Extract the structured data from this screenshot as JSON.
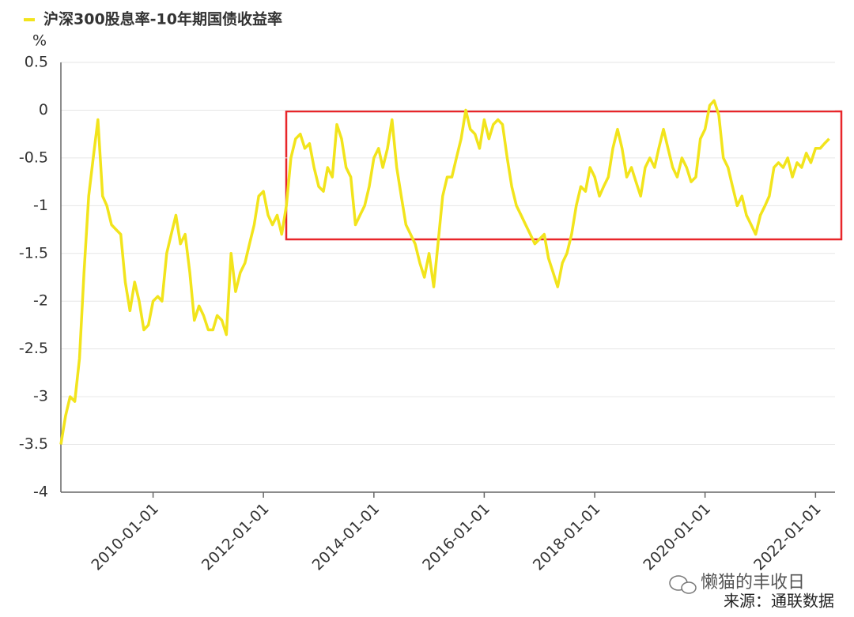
{
  "chart_data": {
    "type": "line",
    "ylabel": "%",
    "series": [
      {
        "name": "沪深300股息率-10年期国债收益率",
        "color": "#f2e41c",
        "values": [
          -3.5,
          -3.2,
          -3.0,
          -3.05,
          -2.6,
          -1.7,
          -0.9,
          -0.5,
          -0.1,
          -0.9,
          -1.0,
          -1.2,
          -1.25,
          -1.3,
          -1.8,
          -2.1,
          -1.8,
          -2.0,
          -2.3,
          -2.25,
          -2.0,
          -1.95,
          -2.0,
          -1.5,
          -1.3,
          -1.1,
          -1.4,
          -1.3,
          -1.7,
          -2.2,
          -2.05,
          -2.15,
          -2.3,
          -2.3,
          -2.15,
          -2.2,
          -2.35,
          -1.5,
          -1.9,
          -1.7,
          -1.6,
          -1.4,
          -1.2,
          -0.9,
          -0.85,
          -1.1,
          -1.2,
          -1.1,
          -1.3,
          -1.0,
          -0.5,
          -0.3,
          -0.25,
          -0.4,
          -0.35,
          -0.6,
          -0.8,
          -0.85,
          -0.6,
          -0.7,
          -0.15,
          -0.3,
          -0.6,
          -0.7,
          -1.2,
          -1.1,
          -1.0,
          -0.8,
          -0.5,
          -0.4,
          -0.6,
          -0.4,
          -0.1,
          -0.6,
          -0.9,
          -1.2,
          -1.3,
          -1.4,
          -1.6,
          -1.75,
          -1.5,
          -1.85,
          -1.4,
          -0.9,
          -0.7,
          -0.7,
          -0.5,
          -0.3,
          0.0,
          -0.2,
          -0.25,
          -0.4,
          -0.1,
          -0.3,
          -0.15,
          -0.1,
          -0.15,
          -0.5,
          -0.8,
          -1.0,
          -1.1,
          -1.2,
          -1.3,
          -1.4,
          -1.35,
          -1.3,
          -1.55,
          -1.7,
          -1.85,
          -1.6,
          -1.5,
          -1.3,
          -1.0,
          -0.8,
          -0.85,
          -0.6,
          -0.7,
          -0.9,
          -0.8,
          -0.7,
          -0.4,
          -0.2,
          -0.4,
          -0.7,
          -0.6,
          -0.75,
          -0.9,
          -0.6,
          -0.5,
          -0.6,
          -0.4,
          -0.2,
          -0.4,
          -0.6,
          -0.7,
          -0.5,
          -0.6,
          -0.75,
          -0.7,
          -0.3,
          -0.2,
          0.05,
          0.1,
          -0.05,
          -0.5,
          -0.6,
          -0.8,
          -1.0,
          -0.9,
          -1.1,
          -1.2,
          -1.3,
          -1.1,
          -1.0,
          -0.9,
          -0.6,
          -0.55,
          -0.6,
          -0.5,
          -0.7,
          -0.55,
          -0.6,
          -0.45,
          -0.55,
          -0.4,
          -0.4,
          -0.35,
          -0.3
        ]
      }
    ],
    "x": [
      "2008-05-01",
      "2008-06-01",
      "2008-07-01",
      "2008-08-01",
      "2008-09-01",
      "2008-10-01",
      "2008-11-01",
      "2008-12-01",
      "2009-01-01",
      "2009-02-01",
      "2009-03-01",
      "2009-04-01",
      "2009-05-01",
      "2009-06-01",
      "2009-07-01",
      "2009-08-01",
      "2009-09-01",
      "2009-10-01",
      "2009-11-01",
      "2009-12-01",
      "2010-01-01",
      "2010-02-01",
      "2010-03-01",
      "2010-04-01",
      "2010-05-01",
      "2010-06-01",
      "2010-07-01",
      "2010-08-01",
      "2010-09-01",
      "2010-10-01",
      "2010-11-01",
      "2010-12-01",
      "2011-01-01",
      "2011-02-01",
      "2011-03-01",
      "2011-04-01",
      "2011-05-01",
      "2011-06-01",
      "2011-07-01",
      "2011-08-01",
      "2011-09-01",
      "2011-10-01",
      "2011-11-01",
      "2011-12-01",
      "2012-01-01",
      "2012-02-01",
      "2012-03-01",
      "2012-04-01",
      "2012-05-01",
      "2012-06-01",
      "2012-07-01",
      "2012-08-01",
      "2012-09-01",
      "2012-10-01",
      "2012-11-01",
      "2012-12-01",
      "2013-01-01",
      "2013-02-01",
      "2013-03-01",
      "2013-04-01",
      "2013-05-01",
      "2013-06-01",
      "2013-07-01",
      "2013-08-01",
      "2013-09-01",
      "2013-10-01",
      "2013-11-01",
      "2013-12-01",
      "2014-01-01",
      "2014-02-01",
      "2014-03-01",
      "2014-04-01",
      "2014-05-01",
      "2014-06-01",
      "2014-07-01",
      "2014-08-01",
      "2014-09-01",
      "2014-10-01",
      "2014-11-01",
      "2014-12-01",
      "2015-01-01",
      "2015-02-01",
      "2015-03-01",
      "2015-04-01",
      "2015-05-01",
      "2015-06-01",
      "2015-07-01",
      "2015-08-01",
      "2015-09-01",
      "2015-10-01",
      "2015-11-01",
      "2015-12-01",
      "2016-01-01",
      "2016-02-01",
      "2016-03-01",
      "2016-04-01",
      "2016-05-01",
      "2016-06-01",
      "2016-07-01",
      "2016-08-01",
      "2016-09-01",
      "2016-10-01",
      "2016-11-01",
      "2016-12-01",
      "2017-01-01",
      "2017-02-01",
      "2017-03-01",
      "2017-04-01",
      "2017-05-01",
      "2017-06-01",
      "2017-07-01",
      "2017-08-01",
      "2017-09-01",
      "2017-10-01",
      "2017-11-01",
      "2017-12-01",
      "2018-01-01",
      "2018-02-01",
      "2018-03-01",
      "2018-04-01",
      "2018-05-01",
      "2018-06-01",
      "2018-07-01",
      "2018-08-01",
      "2018-09-01",
      "2018-10-01",
      "2018-11-01",
      "2018-12-01",
      "2019-01-01",
      "2019-02-01",
      "2019-03-01",
      "2019-04-01",
      "2019-05-01",
      "2019-06-01",
      "2019-07-01",
      "2019-08-01",
      "2019-09-01",
      "2019-10-01",
      "2019-11-01",
      "2019-12-01",
      "2020-01-01",
      "2020-02-01",
      "2020-03-01",
      "2020-04-01",
      "2020-05-01",
      "2020-06-01",
      "2020-07-01",
      "2020-08-01",
      "2020-09-01",
      "2020-10-01",
      "2020-11-01",
      "2020-12-01",
      "2021-01-01",
      "2021-02-01",
      "2021-03-01",
      "2021-04-01",
      "2021-05-01",
      "2021-06-01",
      "2021-07-01",
      "2021-08-01",
      "2021-09-01",
      "2021-10-01",
      "2021-11-01",
      "2021-12-01",
      "2022-01-01",
      "2022-02-01",
      "2022-03-01",
      "2022-04-01"
    ],
    "xlim": [
      "2008-05-01",
      "2022-05-10"
    ],
    "xticks": [
      "2010-01-01",
      "2012-01-01",
      "2014-01-01",
      "2016-01-01",
      "2018-01-01",
      "2020-01-01",
      "2022-01-01"
    ],
    "ylim": [
      -4,
      0.5
    ],
    "yticks": [
      0.5,
      0,
      -0.5,
      -1,
      -1.5,
      -2,
      -2.5,
      -3,
      -3.5,
      -4
    ],
    "grid": true,
    "legend": "top-left",
    "watermark": "懒猫的丰收日",
    "source": "来源：通联数据"
  }
}
